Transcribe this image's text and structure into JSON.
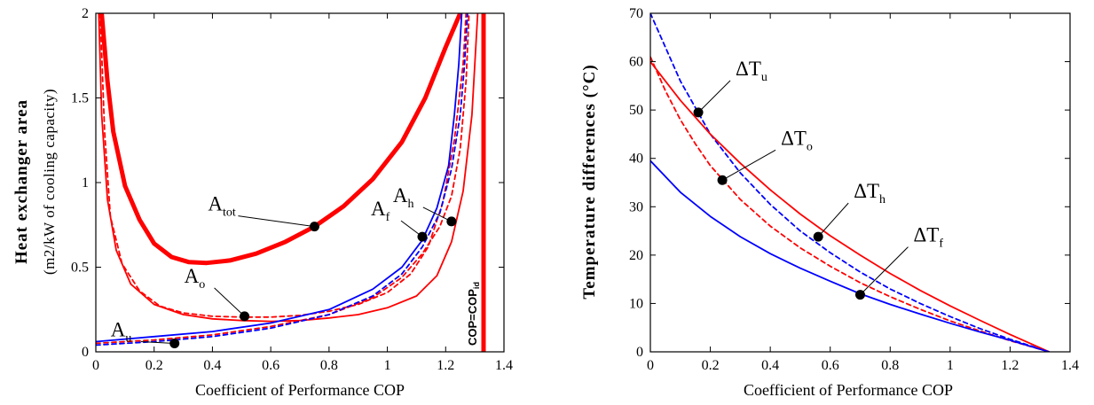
{
  "chart_data": [
    {
      "type": "line",
      "xlabel": "Coefficient of Performance COP",
      "ylabel_main": "Heat exchanger area",
      "ylabel_sub": "(m2/kW of cooling capacity)",
      "xlim": [
        0,
        1.4
      ],
      "ylim": [
        0,
        2
      ],
      "x_ticks": [
        "0",
        "0.2",
        "0.4",
        "0.6",
        "0.8",
        "1",
        "1.2",
        "1.4"
      ],
      "y_ticks": [
        "0",
        "0.5",
        "1",
        "1.5",
        "2"
      ],
      "vertical_line": {
        "x": 1.33,
        "label": "COP=COP",
        "label_sub": "id",
        "color": "#ff0000"
      },
      "series": [
        {
          "label": "A",
          "sub": "tot",
          "color": "#ff0000",
          "style": "solid",
          "weight": "heavy",
          "points": [
            [
              0.02,
              2
            ],
            [
              0.04,
              1.6
            ],
            [
              0.06,
              1.3
            ],
            [
              0.1,
              0.98
            ],
            [
              0.15,
              0.78
            ],
            [
              0.2,
              0.64
            ],
            [
              0.26,
              0.56
            ],
            [
              0.32,
              0.53
            ],
            [
              0.38,
              0.525
            ],
            [
              0.46,
              0.54
            ],
            [
              0.55,
              0.58
            ],
            [
              0.65,
              0.65
            ],
            [
              0.75,
              0.74
            ],
            [
              0.85,
              0.86
            ],
            [
              0.95,
              1.02
            ],
            [
              1.05,
              1.24
            ],
            [
              1.13,
              1.5
            ],
            [
              1.2,
              1.8
            ],
            [
              1.25,
              2
            ]
          ],
          "marker": [
            0.75,
            0.74
          ]
        },
        {
          "label": "A",
          "sub": "o",
          "color": "#ff0000",
          "style": "solid",
          "weight": "normal",
          "points": [
            [
              0.01,
              2
            ],
            [
              0.02,
              1.4
            ],
            [
              0.04,
              0.9
            ],
            [
              0.07,
              0.6
            ],
            [
              0.12,
              0.4
            ],
            [
              0.2,
              0.28
            ],
            [
              0.3,
              0.22
            ],
            [
              0.4,
              0.195
            ],
            [
              0.5,
              0.185
            ],
            [
              0.6,
              0.18
            ],
            [
              0.7,
              0.185
            ],
            [
              0.8,
              0.2
            ],
            [
              0.9,
              0.22
            ],
            [
              1.0,
              0.26
            ],
            [
              1.1,
              0.33
            ],
            [
              1.17,
              0.45
            ],
            [
              1.22,
              0.65
            ],
            [
              1.26,
              0.95
            ],
            [
              1.29,
              1.4
            ],
            [
              1.31,
              2
            ]
          ],
          "marker": [
            0.51,
            0.21
          ]
        },
        {
          "label": "",
          "sub": "",
          "color": "#ff0000",
          "style": "dashed",
          "weight": "normal",
          "points": [
            [
              0.015,
              2
            ],
            [
              0.03,
              1.3
            ],
            [
              0.05,
              0.8
            ],
            [
              0.09,
              0.52
            ],
            [
              0.15,
              0.36
            ],
            [
              0.22,
              0.27
            ],
            [
              0.3,
              0.23
            ],
            [
              0.4,
              0.21
            ],
            [
              0.5,
              0.205
            ],
            [
              0.6,
              0.205
            ],
            [
              0.7,
              0.215
            ],
            [
              0.8,
              0.24
            ],
            [
              0.9,
              0.28
            ],
            [
              1.0,
              0.35
            ],
            [
              1.08,
              0.46
            ],
            [
              1.14,
              0.62
            ],
            [
              1.19,
              0.88
            ],
            [
              1.23,
              1.25
            ],
            [
              1.26,
              1.7
            ],
            [
              1.27,
              2
            ]
          ]
        },
        {
          "label": "A",
          "sub": "h",
          "color": "#ff0000",
          "style": "dashed",
          "weight": "normal",
          "points": [
            [
              0,
              0.05
            ],
            [
              0.2,
              0.07
            ],
            [
              0.4,
              0.1
            ],
            [
              0.6,
              0.15
            ],
            [
              0.8,
              0.22
            ],
            [
              0.95,
              0.32
            ],
            [
              1.05,
              0.44
            ],
            [
              1.12,
              0.58
            ],
            [
              1.18,
              0.74
            ],
            [
              1.22,
              0.92
            ],
            [
              1.25,
              1.2
            ],
            [
              1.27,
              1.6
            ],
            [
              1.28,
              2
            ]
          ],
          "marker": [
            1.22,
            0.77
          ]
        },
        {
          "label": "A",
          "sub": "f",
          "color": "#0000ff",
          "style": "solid",
          "weight": "normal",
          "points": [
            [
              0,
              0.06
            ],
            [
              0.2,
              0.09
            ],
            [
              0.4,
              0.12
            ],
            [
              0.6,
              0.17
            ],
            [
              0.8,
              0.25
            ],
            [
              0.95,
              0.37
            ],
            [
              1.05,
              0.5
            ],
            [
              1.12,
              0.66
            ],
            [
              1.17,
              0.85
            ],
            [
              1.21,
              1.1
            ],
            [
              1.23,
              1.4
            ],
            [
              1.245,
              1.7
            ],
            [
              1.255,
              2
            ]
          ],
          "marker": [
            1.12,
            0.68
          ]
        },
        {
          "label": "A",
          "sub": "u",
          "color": "#0000ff",
          "style": "dashed",
          "weight": "normal",
          "points": [
            [
              0,
              0.04
            ],
            [
              0.2,
              0.06
            ],
            [
              0.4,
              0.09
            ],
            [
              0.6,
              0.14
            ],
            [
              0.8,
              0.22
            ],
            [
              0.95,
              0.33
            ],
            [
              1.05,
              0.46
            ],
            [
              1.12,
              0.62
            ],
            [
              1.18,
              0.82
            ],
            [
              1.22,
              1.08
            ],
            [
              1.25,
              1.4
            ],
            [
              1.265,
              1.7
            ],
            [
              1.275,
              2
            ]
          ],
          "marker": [
            0.27,
            0.05
          ]
        }
      ]
    },
    {
      "type": "line",
      "xlabel": "Coefficient of Performance COP",
      "ylabel_main": "Temperature differences (°C)",
      "xlim": [
        0,
        1.4
      ],
      "ylim": [
        0,
        70
      ],
      "x_ticks": [
        "0",
        "0.2",
        "0.4",
        "0.6",
        "0.8",
        "1",
        "1.2",
        "1.4"
      ],
      "y_ticks": [
        "0",
        "10",
        "20",
        "30",
        "40",
        "50",
        "60",
        "70"
      ],
      "series": [
        {
          "label": "ΔT",
          "sub": "u",
          "color": "#0000ff",
          "style": "dashed",
          "points": [
            [
              0,
              70
            ],
            [
              0.05,
              63
            ],
            [
              0.1,
              56
            ],
            [
              0.15,
              50.5
            ],
            [
              0.2,
              45
            ],
            [
              0.3,
              37
            ],
            [
              0.4,
              30.5
            ],
            [
              0.5,
              25
            ],
            [
              0.6,
              20.5
            ],
            [
              0.7,
              16.5
            ],
            [
              0.8,
              13
            ],
            [
              0.9,
              10
            ],
            [
              1.0,
              7.3
            ],
            [
              1.1,
              4.8
            ],
            [
              1.2,
              2.6
            ],
            [
              1.33,
              0
            ]
          ],
          "marker": [
            0.16,
            49.5
          ]
        },
        {
          "label": "ΔT",
          "sub": "o",
          "color": "#ff0000",
          "style": "dashed",
          "points": [
            [
              0,
              61
            ],
            [
              0.05,
              54
            ],
            [
              0.1,
              48
            ],
            [
              0.15,
              43
            ],
            [
              0.2,
              38.5
            ],
            [
              0.3,
              31.5
            ],
            [
              0.4,
              26
            ],
            [
              0.5,
              21.5
            ],
            [
              0.6,
              17.7
            ],
            [
              0.7,
              14.3
            ],
            [
              0.8,
              11.4
            ],
            [
              0.9,
              8.8
            ],
            [
              1.0,
              6.4
            ],
            [
              1.1,
              4.3
            ],
            [
              1.2,
              2.3
            ],
            [
              1.33,
              0
            ]
          ],
          "marker": [
            0.24,
            35.5
          ]
        },
        {
          "label": "ΔT",
          "sub": "h",
          "color": "#ff0000",
          "style": "solid",
          "points": [
            [
              0,
              60
            ],
            [
              0.05,
              56
            ],
            [
              0.1,
              52
            ],
            [
              0.15,
              48.5
            ],
            [
              0.2,
              45
            ],
            [
              0.3,
              39
            ],
            [
              0.4,
              33.5
            ],
            [
              0.5,
              28.5
            ],
            [
              0.6,
              24
            ],
            [
              0.7,
              20
            ],
            [
              0.8,
              16.2
            ],
            [
              0.9,
              12.7
            ],
            [
              1.0,
              9.5
            ],
            [
              1.1,
              6.5
            ],
            [
              1.2,
              3.6
            ],
            [
              1.33,
              0
            ]
          ],
          "marker": [
            0.56,
            23.8
          ]
        },
        {
          "label": "ΔT",
          "sub": "f",
          "color": "#0000ff",
          "style": "solid",
          "points": [
            [
              0,
              39.5
            ],
            [
              0.1,
              33
            ],
            [
              0.2,
              28
            ],
            [
              0.3,
              23.8
            ],
            [
              0.4,
              20.3
            ],
            [
              0.5,
              17.3
            ],
            [
              0.6,
              14.6
            ],
            [
              0.7,
              12
            ],
            [
              0.8,
              9.8
            ],
            [
              0.9,
              7.8
            ],
            [
              1.0,
              5.9
            ],
            [
              1.1,
              4.1
            ],
            [
              1.2,
              2.4
            ],
            [
              1.33,
              0
            ]
          ],
          "marker": [
            0.7,
            11.8
          ]
        }
      ]
    }
  ]
}
